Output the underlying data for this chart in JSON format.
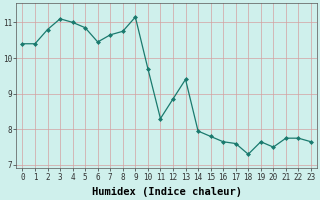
{
  "x": [
    0,
    1,
    2,
    3,
    4,
    5,
    6,
    7,
    8,
    9,
    10,
    11,
    12,
    13,
    14,
    15,
    16,
    17,
    18,
    19,
    20,
    21,
    22,
    23
  ],
  "y": [
    10.4,
    10.4,
    10.8,
    11.1,
    11.0,
    10.85,
    10.45,
    10.65,
    10.75,
    11.15,
    9.7,
    8.3,
    8.85,
    9.4,
    7.95,
    7.8,
    7.65,
    7.6,
    7.3,
    7.65,
    7.5,
    7.75,
    7.75,
    7.65
  ],
  "xlabel": "Humidex (Indice chaleur)",
  "xlim": [
    -0.5,
    23.5
  ],
  "ylim": [
    6.9,
    11.55
  ],
  "yticks": [
    7,
    8,
    9,
    10,
    11
  ],
  "xticks": [
    0,
    1,
    2,
    3,
    4,
    5,
    6,
    7,
    8,
    9,
    10,
    11,
    12,
    13,
    14,
    15,
    16,
    17,
    18,
    19,
    20,
    21,
    22,
    23
  ],
  "line_color": "#1a7a6e",
  "marker": "D",
  "marker_size": 2.0,
  "bg_color": "#cff0ec",
  "grid_color_v": "#d4a0a0",
  "grid_color_h": "#d4a0a0",
  "tick_fontsize": 5.5,
  "label_fontsize": 7.5
}
